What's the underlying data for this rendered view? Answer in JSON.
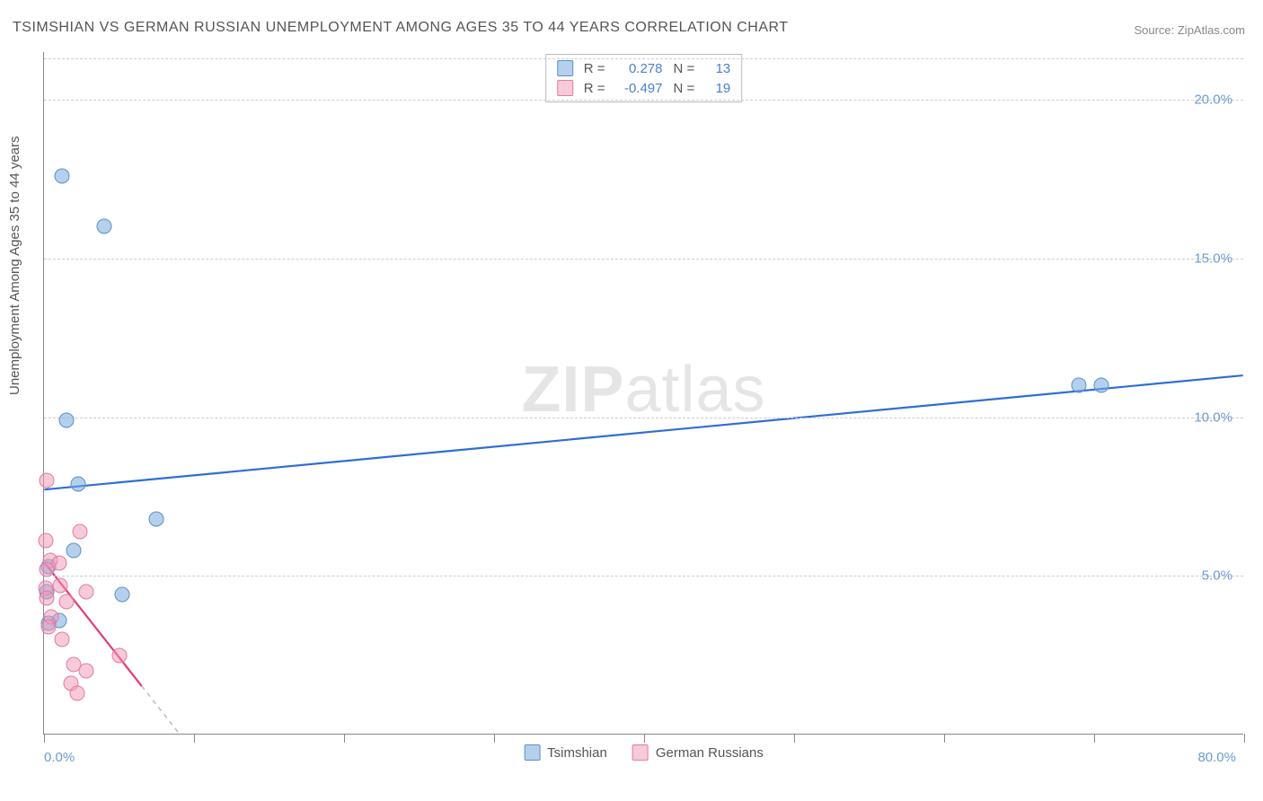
{
  "title": "TSIMSHIAN VS GERMAN RUSSIAN UNEMPLOYMENT AMONG AGES 35 TO 44 YEARS CORRELATION CHART",
  "source": "Source: ZipAtlas.com",
  "ylabel": "Unemployment Among Ages 35 to 44 years",
  "watermark_bold": "ZIP",
  "watermark_rest": "atlas",
  "chart": {
    "type": "scatter",
    "xlim": [
      0,
      80
    ],
    "ylim": [
      0,
      21.5
    ],
    "x_ticks_minor": [
      0,
      10,
      20,
      30,
      40,
      50,
      60,
      70,
      80
    ],
    "x_tick_labels": [
      {
        "pos": 0,
        "label": "0.0%"
      },
      {
        "pos": 80,
        "label": "80.0%"
      }
    ],
    "y_gridlines": [
      5,
      10,
      15,
      20,
      21.3
    ],
    "y_tick_labels": [
      {
        "pos": 5,
        "label": "5.0%"
      },
      {
        "pos": 10,
        "label": "10.0%"
      },
      {
        "pos": 15,
        "label": "15.0%"
      },
      {
        "pos": 20,
        "label": "20.0%"
      }
    ],
    "background_color": "#ffffff",
    "grid_color": "#cccccc",
    "axis_color": "#888888",
    "tick_label_color": "#6b9bd1",
    "marker_radius": 8.5,
    "series": [
      {
        "name": "Tsimshian",
        "color_fill": "rgba(120,170,220,0.55)",
        "color_stroke": "#5a8fc7",
        "points": [
          [
            1.2,
            17.6
          ],
          [
            4.0,
            16.0
          ],
          [
            1.5,
            9.9
          ],
          [
            2.3,
            7.9
          ],
          [
            7.5,
            6.8
          ],
          [
            2.0,
            5.8
          ],
          [
            5.2,
            4.4
          ],
          [
            1.0,
            3.6
          ],
          [
            0.3,
            5.3
          ],
          [
            0.2,
            4.5
          ],
          [
            69.0,
            11.0
          ],
          [
            70.5,
            11.0
          ],
          [
            0.3,
            3.5
          ]
        ],
        "trendline": {
          "x1": 0,
          "y1": 7.7,
          "x2": 80,
          "y2": 11.3,
          "color": "#2e6ed3",
          "width": 2.2
        }
      },
      {
        "name": "German Russians",
        "color_fill": "rgba(240,150,180,0.5)",
        "color_stroke": "#e47aa0",
        "points": [
          [
            0.2,
            8.0
          ],
          [
            0.1,
            6.1
          ],
          [
            2.4,
            6.4
          ],
          [
            0.4,
            5.5
          ],
          [
            1.0,
            5.4
          ],
          [
            0.2,
            5.2
          ],
          [
            1.1,
            4.7
          ],
          [
            2.8,
            4.5
          ],
          [
            0.1,
            4.6
          ],
          [
            0.2,
            4.3
          ],
          [
            1.5,
            4.2
          ],
          [
            0.5,
            3.7
          ],
          [
            0.3,
            3.4
          ],
          [
            1.2,
            3.0
          ],
          [
            5.0,
            2.5
          ],
          [
            2.0,
            2.2
          ],
          [
            2.8,
            2.0
          ],
          [
            1.8,
            1.6
          ],
          [
            2.2,
            1.3
          ]
        ],
        "trendline_solid": {
          "x1": 0,
          "y1": 5.4,
          "x2": 6.5,
          "y2": 1.5,
          "color": "#e03b7a",
          "width": 2.2
        },
        "trendline_dashed": {
          "x1": 6.5,
          "y1": 1.5,
          "x2": 9.0,
          "y2": 0.0,
          "color": "#bbbbbb",
          "width": 1.5
        }
      }
    ],
    "stats": [
      {
        "swatch": "b",
        "r_label": "R =",
        "r_value": "0.278",
        "n_label": "N =",
        "n_value": "13"
      },
      {
        "swatch": "p",
        "r_label": "R =",
        "r_value": "-0.497",
        "n_label": "N =",
        "n_value": "19"
      }
    ],
    "legend": [
      {
        "swatch": "b",
        "label": "Tsimshian"
      },
      {
        "swatch": "p",
        "label": "German Russians"
      }
    ]
  }
}
